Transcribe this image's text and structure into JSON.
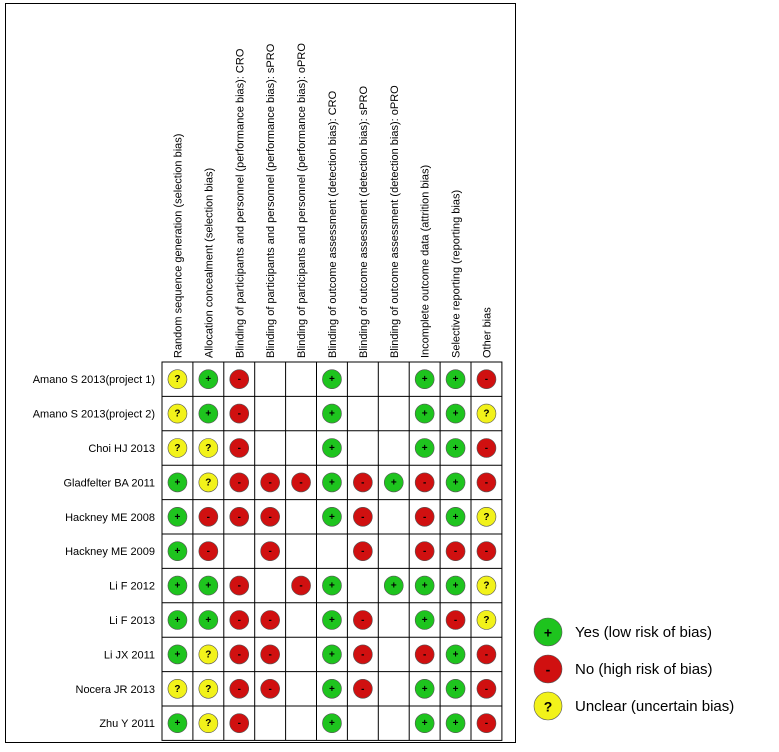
{
  "columns": [
    "Random sequence generation (selection bias)",
    "Allocation concealment (selection bias)",
    "Blinding of participants and personnel (performance bias): CRO",
    "Blinding of participants and personnel (performance bias): sPRO",
    "Blinding of participants and personnel (performance bias): oPRO",
    "Blinding of outcome assessment (detection bias): CRO",
    "Blinding of outcome assessment (detection bias): sPRO",
    "Blinding of outcome assessment (detection bias): oPRO",
    "Incomplete outcome data (attrition bias)",
    "Selective reporting (reporting bias)",
    "Other bias"
  ],
  "rows": [
    {
      "study": "Amano S 2013(project 1)",
      "cells": [
        "?",
        "+",
        "-",
        null,
        null,
        "+",
        null,
        null,
        "+",
        "+",
        "-"
      ]
    },
    {
      "study": "Amano S 2013(project 2)",
      "cells": [
        "?",
        "+",
        "-",
        null,
        null,
        "+",
        null,
        null,
        "+",
        "+",
        "?"
      ]
    },
    {
      "study": "Choi HJ 2013",
      "cells": [
        "?",
        "?",
        "-",
        null,
        null,
        "+",
        null,
        null,
        "+",
        "+",
        "-"
      ]
    },
    {
      "study": "Gladfelter BA 2011",
      "cells": [
        "+",
        "?",
        "-",
        "-",
        "-",
        "+",
        "-",
        "+",
        "-",
        "+",
        "-"
      ]
    },
    {
      "study": "Hackney ME 2008",
      "cells": [
        "+",
        "-",
        "-",
        "-",
        null,
        "+",
        "-",
        null,
        "-",
        "+",
        "?"
      ]
    },
    {
      "study": "Hackney ME 2009",
      "cells": [
        "+",
        "-",
        null,
        "-",
        null,
        null,
        "-",
        null,
        "-",
        "-",
        "-"
      ]
    },
    {
      "study": "Li F 2012",
      "cells": [
        "+",
        "+",
        "-",
        null,
        "-",
        "+",
        null,
        "+",
        "+",
        "+",
        "?"
      ]
    },
    {
      "study": "Li F 2013",
      "cells": [
        "+",
        "+",
        "-",
        "-",
        null,
        "+",
        "-",
        null,
        "+",
        "-",
        "?"
      ]
    },
    {
      "study": "Li JX 2011",
      "cells": [
        "+",
        "?",
        "-",
        "-",
        null,
        "+",
        "-",
        null,
        "-",
        "+",
        "-"
      ]
    },
    {
      "study": "Nocera JR 2013",
      "cells": [
        "?",
        "?",
        "-",
        "-",
        null,
        "+",
        "-",
        null,
        "+",
        "+",
        "-"
      ]
    },
    {
      "study": "Zhu Y 2011",
      "cells": [
        "+",
        "?",
        "-",
        null,
        null,
        "+",
        null,
        null,
        "+",
        "+",
        "-"
      ]
    }
  ],
  "legend": {
    "items": [
      {
        "symbol": "+",
        "label": "Yes (low risk of bias)",
        "color": "#1ec41e"
      },
      {
        "symbol": "-",
        "label": "No (high risk of bias)",
        "color": "#d01010"
      },
      {
        "symbol": "?",
        "label": "Unclear (uncertain bias)",
        "color": "#f2f21a"
      }
    ]
  }
}
